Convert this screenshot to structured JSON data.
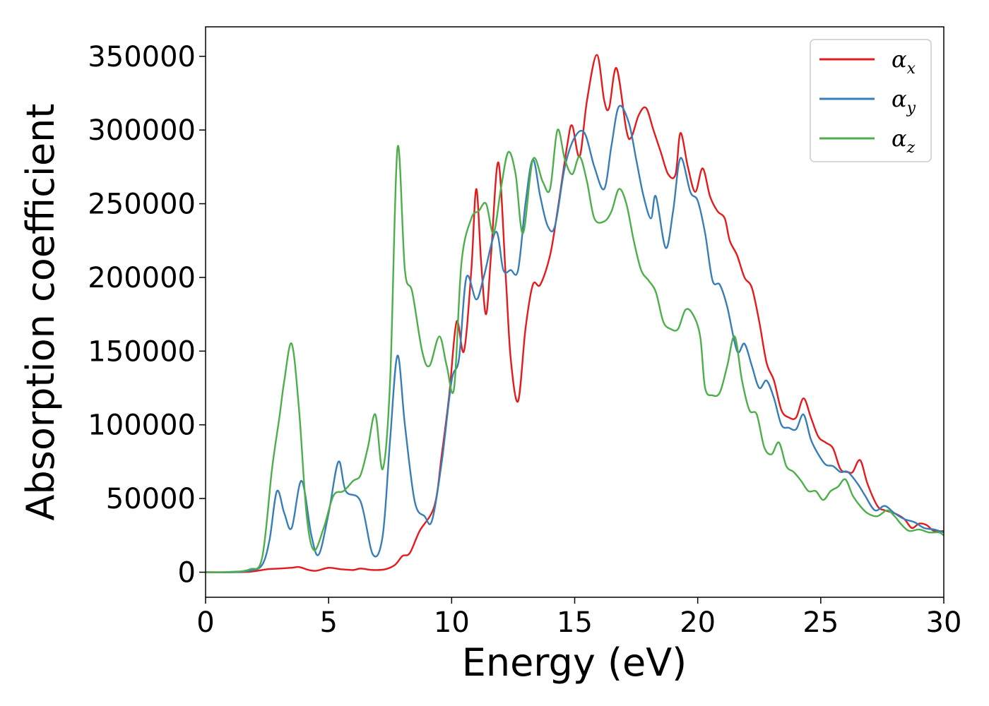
{
  "chart_data": {
    "type": "line",
    "title": "",
    "xlabel": "Energy (eV)",
    "ylabel": "Absorption coefficient",
    "xlim": [
      0,
      30
    ],
    "ylim": [
      -17000,
      370000
    ],
    "xticks": [
      0,
      5,
      10,
      15,
      20,
      25,
      30
    ],
    "yticks": [
      0,
      50000,
      100000,
      150000,
      200000,
      250000,
      300000,
      350000
    ],
    "grid": false,
    "legend_position": "top-right",
    "series": [
      {
        "name": "α_x",
        "symbol": "α",
        "subscript": "x",
        "color": "#e41a1c",
        "points": [
          [
            0,
            0
          ],
          [
            1,
            0
          ],
          [
            1.8,
            300
          ],
          [
            2.5,
            2000
          ],
          [
            3,
            2500
          ],
          [
            3.5,
            3000
          ],
          [
            3.8,
            3500
          ],
          [
            4.2,
            1500
          ],
          [
            4.5,
            1000
          ],
          [
            5,
            3000
          ],
          [
            5.5,
            2000
          ],
          [
            6,
            1500
          ],
          [
            6.3,
            2500
          ],
          [
            6.8,
            1500
          ],
          [
            7.3,
            2000
          ],
          [
            7.7,
            5000
          ],
          [
            8,
            11000
          ],
          [
            8.3,
            13000
          ],
          [
            8.7,
            28000
          ],
          [
            9.3,
            45000
          ],
          [
            9.6,
            80000
          ],
          [
            9.9,
            120000
          ],
          [
            10.2,
            170000
          ],
          [
            10.5,
            150000
          ],
          [
            10.8,
            205000
          ],
          [
            11,
            260000
          ],
          [
            11.2,
            210000
          ],
          [
            11.4,
            175000
          ],
          [
            11.6,
            215000
          ],
          [
            11.9,
            278000
          ],
          [
            12.2,
            200000
          ],
          [
            12.4,
            145000
          ],
          [
            12.7,
            116000
          ],
          [
            13,
            165000
          ],
          [
            13.3,
            195000
          ],
          [
            13.6,
            195000
          ],
          [
            14,
            215000
          ],
          [
            14.3,
            245000
          ],
          [
            14.7,
            290000
          ],
          [
            14.9,
            303000
          ],
          [
            15.2,
            282000
          ],
          [
            15.5,
            320000
          ],
          [
            15.9,
            351000
          ],
          [
            16.2,
            320000
          ],
          [
            16.4,
            315000
          ],
          [
            16.7,
            342000
          ],
          [
            17.1,
            300000
          ],
          [
            17.3,
            295000
          ],
          [
            17.6,
            310000
          ],
          [
            17.9,
            315000
          ],
          [
            18.2,
            300000
          ],
          [
            18.5,
            285000
          ],
          [
            18.8,
            270000
          ],
          [
            19.1,
            270000
          ],
          [
            19.3,
            298000
          ],
          [
            19.6,
            275000
          ],
          [
            19.9,
            258000
          ],
          [
            20.2,
            274000
          ],
          [
            20.5,
            255000
          ],
          [
            20.8,
            245000
          ],
          [
            21.1,
            240000
          ],
          [
            21.3,
            225000
          ],
          [
            21.6,
            215000
          ],
          [
            21.9,
            200000
          ],
          [
            22.2,
            193000
          ],
          [
            22.5,
            170000
          ],
          [
            22.8,
            142000
          ],
          [
            23.1,
            130000
          ],
          [
            23.4,
            110000
          ],
          [
            23.7,
            105000
          ],
          [
            24,
            105000
          ],
          [
            24.3,
            118000
          ],
          [
            24.6,
            105000
          ],
          [
            24.9,
            92000
          ],
          [
            25.2,
            88000
          ],
          [
            25.5,
            84000
          ],
          [
            25.8,
            70000
          ],
          [
            26.1,
            68000
          ],
          [
            26.3,
            68000
          ],
          [
            26.6,
            76000
          ],
          [
            26.9,
            60000
          ],
          [
            27.3,
            45000
          ],
          [
            27.6,
            42000
          ],
          [
            28,
            40000
          ],
          [
            28.4,
            36000
          ],
          [
            28.7,
            30000
          ],
          [
            29,
            33000
          ],
          [
            29.3,
            32000
          ],
          [
            29.6,
            28000
          ],
          [
            30,
            28000
          ]
        ]
      },
      {
        "name": "α_y",
        "symbol": "α",
        "subscript": "y",
        "color": "#377eb8",
        "points": [
          [
            0,
            0
          ],
          [
            1,
            0
          ],
          [
            1.8,
            1000
          ],
          [
            2.3,
            5000
          ],
          [
            2.6,
            22000
          ],
          [
            2.9,
            55000
          ],
          [
            3.2,
            40000
          ],
          [
            3.5,
            30000
          ],
          [
            3.9,
            62000
          ],
          [
            4.3,
            25000
          ],
          [
            4.6,
            12000
          ],
          [
            5,
            40000
          ],
          [
            5.4,
            75000
          ],
          [
            5.7,
            55000
          ],
          [
            6.3,
            48000
          ],
          [
            6.8,
            12000
          ],
          [
            7.2,
            25000
          ],
          [
            7.5,
            90000
          ],
          [
            7.8,
            147000
          ],
          [
            8.1,
            100000
          ],
          [
            8.5,
            48000
          ],
          [
            8.9,
            38000
          ],
          [
            9.2,
            35000
          ],
          [
            9.6,
            75000
          ],
          [
            10,
            130000
          ],
          [
            10.3,
            145000
          ],
          [
            10.6,
            200000
          ],
          [
            11,
            185000
          ],
          [
            11.3,
            200000
          ],
          [
            11.8,
            231000
          ],
          [
            12.1,
            205000
          ],
          [
            12.4,
            205000
          ],
          [
            12.7,
            205000
          ],
          [
            13,
            250000
          ],
          [
            13.3,
            280000
          ],
          [
            13.6,
            255000
          ],
          [
            13.9,
            235000
          ],
          [
            14.2,
            235000
          ],
          [
            14.6,
            275000
          ],
          [
            15,
            295000
          ],
          [
            15.4,
            298000
          ],
          [
            15.8,
            275000
          ],
          [
            16.2,
            260000
          ],
          [
            16.5,
            290000
          ],
          [
            16.8,
            316000
          ],
          [
            17.2,
            305000
          ],
          [
            17.5,
            280000
          ],
          [
            17.8,
            255000
          ],
          [
            18.1,
            240000
          ],
          [
            18.3,
            255000
          ],
          [
            18.7,
            220000
          ],
          [
            19,
            245000
          ],
          [
            19.3,
            281000
          ],
          [
            19.7,
            258000
          ],
          [
            20,
            252000
          ],
          [
            20.3,
            230000
          ],
          [
            20.6,
            198000
          ],
          [
            20.9,
            195000
          ],
          [
            21.2,
            180000
          ],
          [
            21.6,
            150000
          ],
          [
            21.9,
            155000
          ],
          [
            22.2,
            140000
          ],
          [
            22.5,
            125000
          ],
          [
            22.8,
            130000
          ],
          [
            23.1,
            118000
          ],
          [
            23.4,
            100000
          ],
          [
            23.7,
            98000
          ],
          [
            24,
            97000
          ],
          [
            24.3,
            107000
          ],
          [
            24.6,
            90000
          ],
          [
            24.9,
            80000
          ],
          [
            25.2,
            73000
          ],
          [
            25.5,
            72000
          ],
          [
            25.8,
            68000
          ],
          [
            26.1,
            68000
          ],
          [
            26.5,
            60000
          ],
          [
            26.8,
            52000
          ],
          [
            27.2,
            42000
          ],
          [
            27.6,
            45000
          ],
          [
            28,
            40000
          ],
          [
            28.4,
            36000
          ],
          [
            28.8,
            34000
          ],
          [
            29.2,
            30000
          ],
          [
            29.6,
            29000
          ],
          [
            30,
            27000
          ]
        ]
      },
      {
        "name": "α_z",
        "symbol": "α",
        "subscript": "z",
        "color": "#4daf4a",
        "points": [
          [
            0,
            0
          ],
          [
            1,
            200
          ],
          [
            1.8,
            2000
          ],
          [
            2.3,
            10000
          ],
          [
            2.7,
            70000
          ],
          [
            3,
            105000
          ],
          [
            3.2,
            130000
          ],
          [
            3.5,
            155000
          ],
          [
            3.8,
            110000
          ],
          [
            4.1,
            40000
          ],
          [
            4.4,
            15000
          ],
          [
            4.8,
            30000
          ],
          [
            5.2,
            52000
          ],
          [
            5.6,
            55000
          ],
          [
            6,
            62000
          ],
          [
            6.3,
            66000
          ],
          [
            6.6,
            85000
          ],
          [
            6.9,
            107000
          ],
          [
            7.2,
            70000
          ],
          [
            7.5,
            130000
          ],
          [
            7.8,
            288000
          ],
          [
            8.1,
            205000
          ],
          [
            8.4,
            190000
          ],
          [
            8.8,
            150000
          ],
          [
            9.1,
            140000
          ],
          [
            9.5,
            160000
          ],
          [
            9.8,
            140000
          ],
          [
            10.1,
            125000
          ],
          [
            10.4,
            210000
          ],
          [
            10.8,
            240000
          ],
          [
            11.1,
            245000
          ],
          [
            11.4,
            250000
          ],
          [
            11.7,
            230000
          ],
          [
            12,
            260000
          ],
          [
            12.3,
            285000
          ],
          [
            12.6,
            270000
          ],
          [
            12.9,
            230000
          ],
          [
            13.3,
            280000
          ],
          [
            13.7,
            265000
          ],
          [
            14,
            260000
          ],
          [
            14.3,
            300000
          ],
          [
            14.6,
            280000
          ],
          [
            14.9,
            270000
          ],
          [
            15.2,
            282000
          ],
          [
            15.5,
            265000
          ],
          [
            15.8,
            240000
          ],
          [
            16.2,
            238000
          ],
          [
            16.5,
            245000
          ],
          [
            16.8,
            260000
          ],
          [
            17.1,
            250000
          ],
          [
            17.4,
            225000
          ],
          [
            17.7,
            205000
          ],
          [
            18,
            198000
          ],
          [
            18.3,
            190000
          ],
          [
            18.6,
            170000
          ],
          [
            18.9,
            165000
          ],
          [
            19.2,
            165000
          ],
          [
            19.5,
            178000
          ],
          [
            19.8,
            175000
          ],
          [
            20.1,
            160000
          ],
          [
            20.3,
            125000
          ],
          [
            20.6,
            120000
          ],
          [
            20.9,
            122000
          ],
          [
            21.2,
            140000
          ],
          [
            21.5,
            160000
          ],
          [
            21.8,
            130000
          ],
          [
            22.1,
            110000
          ],
          [
            22.4,
            107000
          ],
          [
            22.7,
            85000
          ],
          [
            23,
            80000
          ],
          [
            23.3,
            88000
          ],
          [
            23.6,
            72000
          ],
          [
            23.9,
            68000
          ],
          [
            24.2,
            62000
          ],
          [
            24.5,
            55000
          ],
          [
            24.8,
            55000
          ],
          [
            25.1,
            49000
          ],
          [
            25.4,
            55000
          ],
          [
            25.7,
            58000
          ],
          [
            26,
            63000
          ],
          [
            26.3,
            52000
          ],
          [
            26.6,
            45000
          ],
          [
            26.9,
            40000
          ],
          [
            27.3,
            38000
          ],
          [
            27.7,
            42000
          ],
          [
            28,
            38000
          ],
          [
            28.3,
            32000
          ],
          [
            28.6,
            28000
          ],
          [
            29,
            29000
          ],
          [
            29.4,
            27000
          ],
          [
            29.8,
            27000
          ],
          [
            30,
            25000
          ]
        ]
      }
    ]
  }
}
